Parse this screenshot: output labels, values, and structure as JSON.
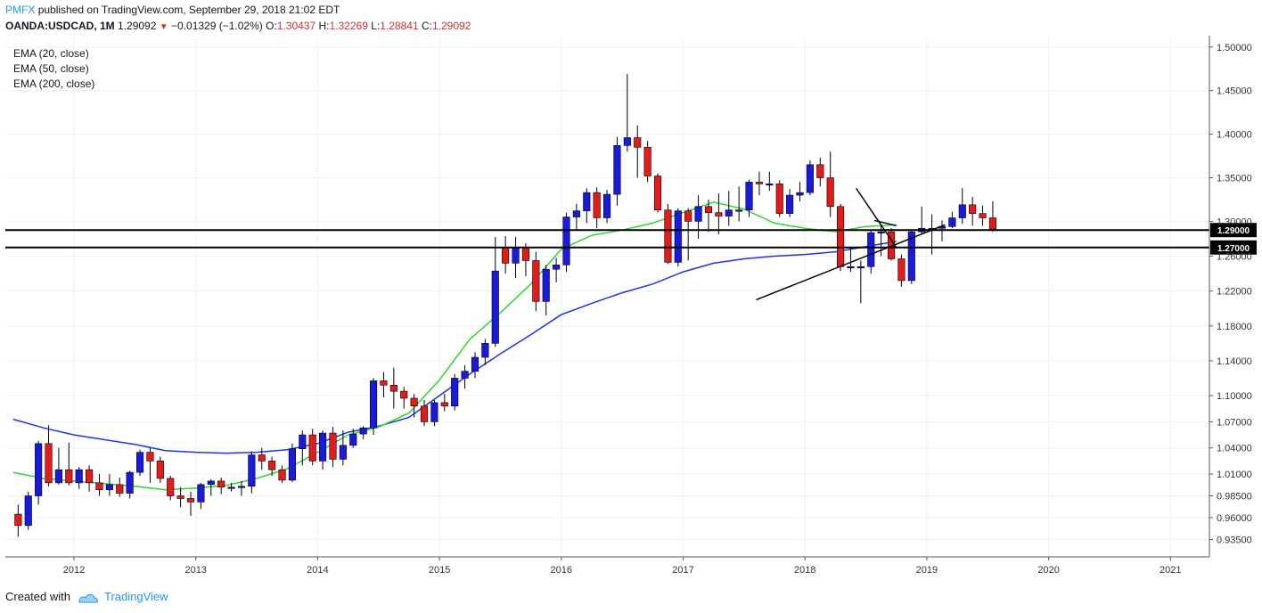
{
  "header": {
    "brand": "PMFX",
    "published": "published on TradingView.com, September 29, 2018 21:02 EDT",
    "symbol": "OANDA:USDCAD, 1M",
    "last": "1.29092",
    "change": "−0.01329 (−1.02%)",
    "open_label": "O:",
    "open": "1.30437",
    "high_label": "H:",
    "high": "1.32269",
    "low_label": "L:",
    "low": "1.28841",
    "close_label": "C:",
    "close": "1.29092"
  },
  "legend": {
    "ema20": "EMA (20, close)",
    "ema50": "EMA (50, close)",
    "ema200": "EMA (200, close)"
  },
  "footer": {
    "created_with": "Created with",
    "brand": "TradingView"
  },
  "colors": {
    "up": "#1a1adf",
    "down": "#e31b1b",
    "ema20": "#2fd62f",
    "ema50": "#1c33e8",
    "hline": "#000000",
    "grid": "#eef0f3"
  },
  "chart_data": {
    "type": "candlestick",
    "title": "OANDA:USDCAD, 1M",
    "ylim": [
      0.915,
      1.51
    ],
    "y_ticks": [
      0.935,
      0.96,
      0.985,
      1.01,
      1.04,
      1.07,
      1.1,
      1.14,
      1.18,
      1.22,
      1.26,
      1.3,
      1.35,
      1.4,
      1.45,
      1.5
    ],
    "y_tick_labels": [
      "0.93500",
      "0.96000",
      "0.98500",
      "1.01000",
      "1.04000",
      "1.07000",
      "1.10000",
      "1.14000",
      "1.18000",
      "1.22000",
      "1.26000",
      "1.30000",
      "1.35000",
      "1.40000",
      "1.45000",
      "1.50000"
    ],
    "x_start": 2011.5,
    "x_ticks": [
      2012,
      2013,
      2014,
      2015,
      2016,
      2017,
      2018,
      2019,
      2020,
      2021
    ],
    "x_tick_labels": [
      "2012",
      "2013",
      "2014",
      "2015",
      "2016",
      "2017",
      "2018",
      "2019",
      "2020",
      "2021"
    ],
    "horizontal_levels": [
      {
        "value": 1.29,
        "label": "1.29000"
      },
      {
        "value": 1.27,
        "label": "1.27000"
      }
    ],
    "candles": [
      [
        0.964,
        0.951,
        0.975,
        0.938
      ],
      [
        0.951,
        0.985,
        0.99,
        0.946
      ],
      [
        0.985,
        1.045,
        1.048,
        0.975
      ],
      [
        1.045,
        1.0,
        1.066,
        0.996
      ],
      [
        1.0,
        1.015,
        1.04,
        0.998
      ],
      [
        1.015,
        1.0,
        1.046,
        0.997
      ],
      [
        1.0,
        1.015,
        1.018,
        0.993
      ],
      [
        1.015,
        1.0,
        1.02,
        0.99
      ],
      [
        1.0,
        0.992,
        1.01,
        0.985
      ],
      [
        0.992,
        0.998,
        1.01,
        0.985
      ],
      [
        0.998,
        0.988,
        1.006,
        0.984
      ],
      [
        0.988,
        1.012,
        1.014,
        0.982
      ],
      [
        1.012,
        1.035,
        1.038,
        1.008
      ],
      [
        1.035,
        1.025,
        1.04,
        1.0
      ],
      [
        1.025,
        1.005,
        1.03,
        1.0
      ],
      [
        1.005,
        0.985,
        1.008,
        0.98
      ],
      [
        0.985,
        0.982,
        0.995,
        0.972
      ],
      [
        0.982,
        0.978,
        0.99,
        0.962
      ],
      [
        0.978,
        0.998,
        1.0,
        0.97
      ],
      [
        0.998,
        1.002,
        1.004,
        0.985
      ],
      [
        1.002,
        0.995,
        1.006,
        0.987
      ],
      [
        0.995,
        0.995,
        1.0,
        0.99
      ],
      [
        0.995,
        0.996,
        1.002,
        0.985
      ],
      [
        0.996,
        1.032,
        1.036,
        0.988
      ],
      [
        1.032,
        1.025,
        1.04,
        1.015
      ],
      [
        1.025,
        1.015,
        1.03,
        1.008
      ],
      [
        1.015,
        1.003,
        1.02,
        1.0
      ],
      [
        1.003,
        1.039,
        1.045,
        1.001
      ],
      [
        1.039,
        1.055,
        1.06,
        1.02
      ],
      [
        1.055,
        1.025,
        1.062,
        1.02
      ],
      [
        1.025,
        1.057,
        1.06,
        1.015
      ],
      [
        1.057,
        1.027,
        1.064,
        1.018
      ],
      [
        1.027,
        1.043,
        1.06,
        1.02
      ],
      [
        1.043,
        1.056,
        1.062,
        1.04
      ],
      [
        1.056,
        1.063,
        1.065,
        1.05
      ],
      [
        1.063,
        1.117,
        1.12,
        1.055
      ],
      [
        1.117,
        1.112,
        1.127,
        1.098
      ],
      [
        1.112,
        1.105,
        1.132,
        1.085
      ],
      [
        1.105,
        1.097,
        1.11,
        1.085
      ],
      [
        1.097,
        1.088,
        1.102,
        1.075
      ],
      [
        1.088,
        1.07,
        1.095,
        1.065
      ],
      [
        1.07,
        1.092,
        1.095,
        1.065
      ],
      [
        1.092,
        1.088,
        1.102,
        1.082
      ],
      [
        1.088,
        1.12,
        1.125,
        1.083
      ],
      [
        1.12,
        1.128,
        1.135,
        1.108
      ],
      [
        1.128,
        1.144,
        1.15,
        1.12
      ],
      [
        1.144,
        1.16,
        1.165,
        1.135
      ],
      [
        1.16,
        1.243,
        1.282,
        1.156
      ],
      [
        1.27,
        1.252,
        1.283,
        1.24
      ],
      [
        1.252,
        1.27,
        1.282,
        1.235
      ],
      [
        1.27,
        1.255,
        1.275,
        1.237
      ],
      [
        1.255,
        1.208,
        1.265,
        1.197
      ],
      [
        1.208,
        1.245,
        1.25,
        1.192
      ],
      [
        1.245,
        1.25,
        1.258,
        1.23
      ],
      [
        1.25,
        1.305,
        1.31,
        1.242
      ],
      [
        1.305,
        1.312,
        1.32,
        1.29
      ],
      [
        1.312,
        1.333,
        1.338,
        1.298
      ],
      [
        1.333,
        1.304,
        1.339,
        1.292
      ],
      [
        1.304,
        1.331,
        1.336,
        1.298
      ],
      [
        1.331,
        1.387,
        1.397,
        1.318
      ],
      [
        1.387,
        1.396,
        1.469,
        1.38
      ],
      [
        1.396,
        1.385,
        1.41,
        1.35
      ],
      [
        1.385,
        1.352,
        1.392,
        1.345
      ],
      [
        1.352,
        1.313,
        1.355,
        1.31
      ],
      [
        1.313,
        1.253,
        1.32,
        1.251
      ],
      [
        1.253,
        1.312,
        1.315,
        1.248
      ],
      [
        1.312,
        1.3,
        1.315,
        1.255
      ],
      [
        1.3,
        1.317,
        1.33,
        1.28
      ],
      [
        1.317,
        1.31,
        1.325,
        1.288
      ],
      [
        1.31,
        1.306,
        1.332,
        1.285
      ],
      [
        1.306,
        1.313,
        1.335,
        1.295
      ],
      [
        1.313,
        1.313,
        1.34,
        1.3
      ],
      [
        1.313,
        1.345,
        1.348,
        1.305
      ],
      [
        1.345,
        1.343,
        1.357,
        1.33
      ],
      [
        1.343,
        1.343,
        1.357,
        1.335
      ],
      [
        1.343,
        1.309,
        1.347,
        1.305
      ],
      [
        1.309,
        1.33,
        1.337,
        1.305
      ],
      [
        1.33,
        1.333,
        1.345,
        1.323
      ],
      [
        1.333,
        1.365,
        1.37,
        1.33
      ],
      [
        1.365,
        1.35,
        1.373,
        1.34
      ],
      [
        1.35,
        1.317,
        1.38,
        1.305
      ],
      [
        1.317,
        1.248,
        1.32,
        1.243
      ],
      [
        1.248,
        1.248,
        1.269,
        1.242
      ],
      [
        1.248,
        1.248,
        1.255,
        1.206
      ],
      [
        1.248,
        1.287,
        1.29,
        1.24
      ],
      [
        1.287,
        1.288,
        1.295,
        1.26
      ],
      [
        1.288,
        1.257,
        1.292,
        1.255
      ],
      [
        1.257,
        1.232,
        1.262,
        1.225
      ],
      [
        1.232,
        1.288,
        1.289,
        1.228
      ],
      [
        1.288,
        1.292,
        1.317,
        1.285
      ],
      [
        1.292,
        1.292,
        1.308,
        1.262
      ],
      [
        1.292,
        1.294,
        1.301,
        1.277
      ],
      [
        1.294,
        1.304,
        1.311,
        1.292
      ],
      [
        1.304,
        1.319,
        1.338,
        1.297
      ],
      [
        1.319,
        1.309,
        1.328,
        1.295
      ],
      [
        1.309,
        1.304,
        1.318,
        1.295
      ],
      [
        1.304,
        1.291,
        1.323,
        1.288
      ]
    ],
    "ema20": [
      [
        2011.5,
        1.012
      ],
      [
        2011.75,
        1.005
      ],
      [
        2012.0,
        1.002
      ],
      [
        2012.5,
        0.996
      ],
      [
        2012.75,
        0.992
      ],
      [
        2013.0,
        0.994
      ],
      [
        2013.25,
        0.997
      ],
      [
        2013.5,
        1.005
      ],
      [
        2013.75,
        1.016
      ],
      [
        2014.0,
        1.035
      ],
      [
        2014.25,
        1.055
      ],
      [
        2014.5,
        1.064
      ],
      [
        2014.75,
        1.08
      ],
      [
        2015.0,
        1.118
      ],
      [
        2015.25,
        1.165
      ],
      [
        2015.5,
        1.195
      ],
      [
        2015.75,
        1.228
      ],
      [
        2016.0,
        1.268
      ],
      [
        2016.25,
        1.284
      ],
      [
        2016.5,
        1.29
      ],
      [
        2016.75,
        1.298
      ],
      [
        2017.0,
        1.31
      ],
      [
        2017.25,
        1.322
      ],
      [
        2017.5,
        1.314
      ],
      [
        2017.75,
        1.298
      ],
      [
        2018.0,
        1.292
      ],
      [
        2018.25,
        1.288
      ],
      [
        2018.5,
        1.294
      ],
      [
        2018.75,
        1.296
      ]
    ],
    "ema50": [
      [
        2011.5,
        1.073
      ],
      [
        2011.75,
        1.063
      ],
      [
        2012.0,
        1.055
      ],
      [
        2012.5,
        1.044
      ],
      [
        2012.75,
        1.037
      ],
      [
        2013.0,
        1.035
      ],
      [
        2013.25,
        1.034
      ],
      [
        2013.5,
        1.035
      ],
      [
        2013.75,
        1.038
      ],
      [
        2014.0,
        1.045
      ],
      [
        2014.25,
        1.058
      ],
      [
        2014.5,
        1.065
      ],
      [
        2014.75,
        1.075
      ],
      [
        2015.0,
        1.1
      ],
      [
        2015.25,
        1.125
      ],
      [
        2015.5,
        1.148
      ],
      [
        2015.75,
        1.17
      ],
      [
        2016.0,
        1.193
      ],
      [
        2016.25,
        1.206
      ],
      [
        2016.5,
        1.218
      ],
      [
        2016.75,
        1.228
      ],
      [
        2017.0,
        1.242
      ],
      [
        2017.25,
        1.252
      ],
      [
        2017.5,
        1.257
      ],
      [
        2017.75,
        1.26
      ],
      [
        2018.0,
        1.262
      ],
      [
        2018.25,
        1.265
      ],
      [
        2018.5,
        1.271
      ],
      [
        2018.75,
        1.277
      ]
    ],
    "trendlines": [
      {
        "from": [
          2017.6,
          1.21
        ],
        "to": [
          2019.15,
          1.296
        ]
      },
      {
        "from": [
          2018.42,
          1.338
        ],
        "to": [
          2018.75,
          1.27
        ]
      },
      {
        "from": [
          2018.57,
          1.301
        ],
        "to": [
          2018.75,
          1.295
        ]
      }
    ]
  }
}
